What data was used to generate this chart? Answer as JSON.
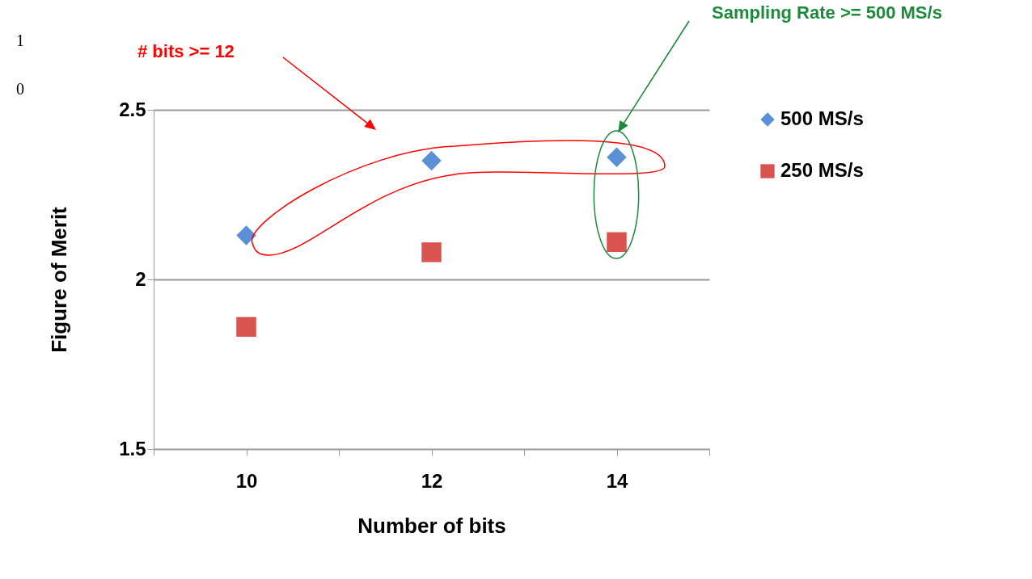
{
  "chart_data": {
    "type": "scatter",
    "xlabel": "Number of bits",
    "ylabel": "Figure of Merit",
    "xlim": [
      9,
      15
    ],
    "xticks": [
      {
        "value": 9,
        "label": null
      },
      10,
      {
        "value": 11,
        "label": null
      },
      12,
      {
        "value": 13,
        "label": null
      },
      14,
      {
        "value": 15,
        "label": null
      }
    ],
    "ylim": [
      1.5,
      2.5
    ],
    "yticks": [
      1.5,
      2,
      2.5
    ],
    "grid": "y",
    "legend": "right",
    "x": [
      10,
      12,
      14
    ],
    "series": [
      {
        "name": "500 MS/s",
        "color": "#5b8fd6",
        "marker": "diamond",
        "values": [
          2.13,
          2.35,
          2.36
        ]
      },
      {
        "name": "250 MS/s",
        "color": "#d9534f",
        "marker": "square",
        "values": [
          1.86,
          2.08,
          2.11
        ]
      }
    ],
    "annotations": [
      {
        "text": "# bits >= 12"
      },
      {
        "text": "Sampling Rate >= 500 MS/s"
      },
      "1",
      "0"
    ]
  }
}
